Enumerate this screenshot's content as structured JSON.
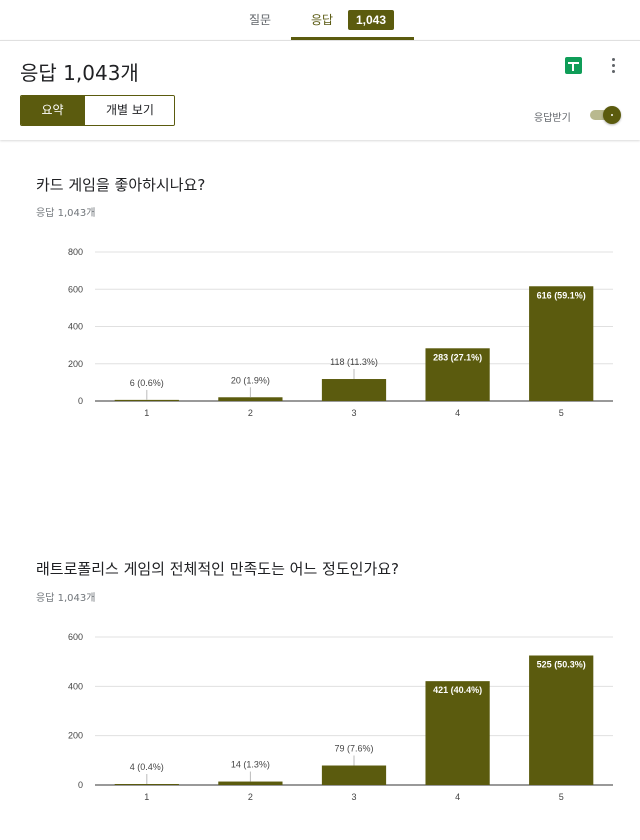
{
  "tabs": {
    "questions": "질문",
    "responses": "응답",
    "count_badge": "1,043"
  },
  "header": {
    "title": "응답 1,043개",
    "summary_label": "요약",
    "individual_label": "개별 보기",
    "accepting_label": "응답받기",
    "sheets_icon": "sheets-icon",
    "more_icon": "more-vert-icon"
  },
  "colors": {
    "accent": "#5b5b0e",
    "bar": "#5b5b0e",
    "grid": "#e0e0e0",
    "sheets": "#0f9d58"
  },
  "questions": [
    {
      "title": "카드 게임을 좋아하시나요?",
      "subtitle": "응답 1,043개"
    },
    {
      "title": "래트로폴리스 게임의 전체적인 만족도는 어느 정도인가요?",
      "subtitle": "응답 1,043개"
    }
  ],
  "chart_data": [
    {
      "type": "bar",
      "categories": [
        "1",
        "2",
        "3",
        "4",
        "5"
      ],
      "values": [
        6,
        20,
        118,
        283,
        616
      ],
      "data_labels": [
        "6 (0.6%)",
        "20 (1.9%)",
        "118 (11.3%)",
        "283 (27.1%)",
        "616 (59.1%)"
      ],
      "yticks": [
        0,
        200,
        400,
        600,
        800
      ],
      "ylim": [
        0,
        800
      ],
      "grid": true
    },
    {
      "type": "bar",
      "categories": [
        "1",
        "2",
        "3",
        "4",
        "5"
      ],
      "values": [
        4,
        14,
        79,
        421,
        525
      ],
      "data_labels": [
        "4 (0.4%)",
        "14 (1.3%)",
        "79 (7.6%)",
        "421 (40.4%)",
        "525 (50.3%)"
      ],
      "yticks": [
        0,
        200,
        400,
        600
      ],
      "ylim": [
        0,
        600
      ],
      "grid": true
    }
  ]
}
